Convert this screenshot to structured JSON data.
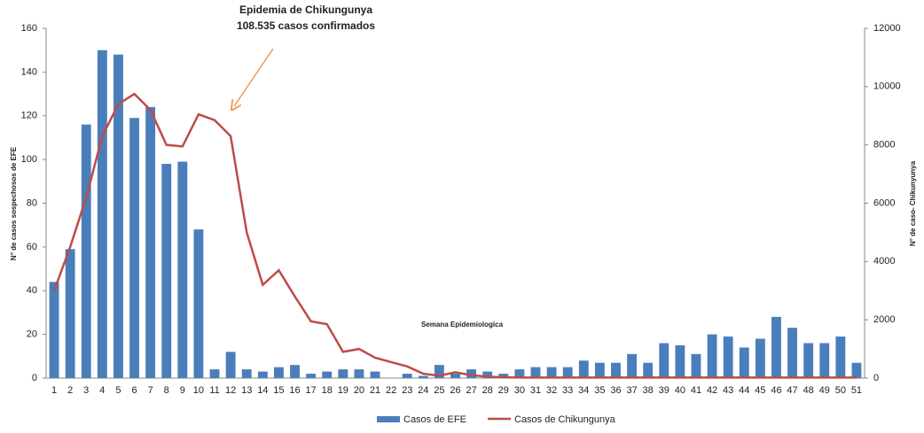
{
  "chart_data": {
    "type": "bar-line",
    "annotation": [
      "Epidemia de Chikungunya",
      "108.535 casos confirmados"
    ],
    "x_label": "Semana Epidemiologica",
    "y_label": "N° de casos sospechosos de EFE",
    "y2_label": "N° de caso- Chikunyunya",
    "categories": [
      "1",
      "2",
      "3",
      "4",
      "5",
      "6",
      "7",
      "8",
      "9",
      "10",
      "11",
      "12",
      "13",
      "14",
      "15",
      "16",
      "17",
      "18",
      "19",
      "20",
      "21",
      "22",
      "23",
      "24",
      "25",
      "26",
      "27",
      "28",
      "29",
      "30",
      "31",
      "32",
      "33",
      "34",
      "35",
      "36",
      "37",
      "38",
      "39",
      "40",
      "41",
      "42",
      "43",
      "44",
      "45",
      "46",
      "47",
      "48",
      "49",
      "50",
      "51"
    ],
    "series": [
      {
        "name": "Casos de EFE",
        "type": "bar",
        "color": "#4a7ebb",
        "values": [
          44,
          59,
          116,
          150,
          148,
          119,
          124,
          98,
          99,
          68,
          4,
          12,
          4,
          3,
          5,
          6,
          2,
          3,
          4,
          4,
          3,
          0,
          2,
          1,
          6,
          2,
          4,
          3,
          2,
          4,
          5,
          5,
          5,
          8,
          7,
          7,
          11,
          7,
          16,
          15,
          11,
          20,
          19,
          14,
          18,
          28,
          23,
          16,
          16,
          19,
          7
        ]
      },
      {
        "name": "Casos de Chikungunya",
        "type": "line",
        "axis": "y2",
        "color": "#be4b48",
        "values": [
          3000,
          4500,
          6200,
          8300,
          9400,
          9750,
          9200,
          8000,
          7950,
          9050,
          8850,
          8300,
          5000,
          3200,
          3700,
          2800,
          1950,
          1850,
          900,
          1000,
          700,
          550,
          400,
          150,
          80,
          200,
          100,
          50,
          30,
          20,
          20,
          20,
          20,
          20,
          20,
          20,
          20,
          20,
          20,
          20,
          20,
          20,
          20,
          20,
          20,
          20,
          20,
          20,
          20,
          20,
          20
        ]
      }
    ],
    "ylim": [
      0,
      160
    ],
    "yticks": [
      0,
      20,
      40,
      60,
      80,
      100,
      120,
      140,
      160
    ],
    "y2lim": [
      0,
      12000
    ],
    "y2ticks": [
      0,
      2000,
      4000,
      6000,
      8000,
      10000,
      12000
    ],
    "grid": false,
    "legend": "bottom"
  }
}
